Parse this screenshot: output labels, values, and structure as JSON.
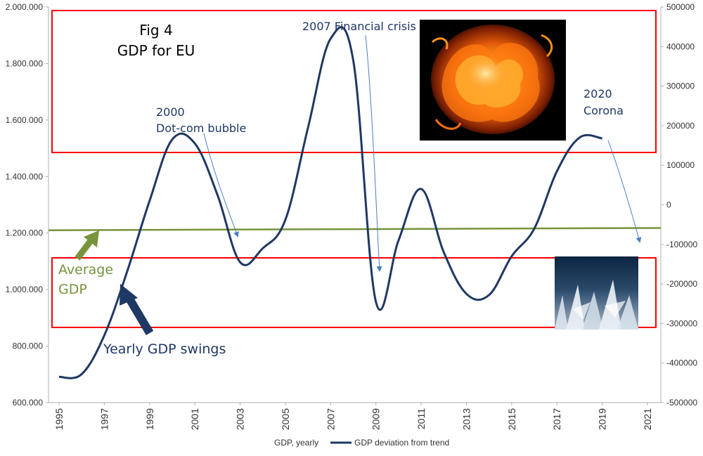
{
  "chart_data": {
    "type": "line",
    "title_line1": "Fig 4",
    "title_line2": "GDP for EU",
    "x_ticks": [
      "1995",
      "1997",
      "1999",
      "2001",
      "2003",
      "2005",
      "2007",
      "2009",
      "2011",
      "2013",
      "2015",
      "2017",
      "2019",
      "2021"
    ],
    "xlim": [
      1995,
      2021
    ],
    "y_left": {
      "ticks": [
        "600.000",
        "800.000",
        "1.000.000",
        "1.200.000",
        "1.400.000",
        "1.600.000",
        "1.800.000",
        "2.000.000"
      ],
      "ylim": [
        600000,
        2000000
      ]
    },
    "y_right": {
      "ticks": [
        "500000",
        "400000",
        "300000",
        "200000",
        "100000",
        "0",
        "-100000",
        "-200000",
        "-300000",
        "-400000",
        "-500000"
      ],
      "ylim": [
        -500000,
        500000
      ]
    },
    "series": [
      {
        "name": "GDP, yearly",
        "axis": "left",
        "color": "#77933c",
        "x": [
          1995,
          2021
        ],
        "values": [
          1210000,
          1218000
        ]
      },
      {
        "name": "GDP deviation from trend",
        "axis": "right",
        "color": "#1f3864",
        "x": [
          1995,
          1996,
          1997,
          1998,
          1999,
          2000,
          2001,
          2002,
          2003,
          2004,
          2005,
          2006,
          2007,
          2008,
          2009,
          2010,
          2011,
          2012,
          2013,
          2014,
          2015,
          2016,
          2017,
          2018,
          2019
        ],
        "values": [
          -435000,
          -428000,
          -330000,
          -170000,
          10000,
          165000,
          155000,
          25000,
          -145000,
          -110000,
          -38000,
          195000,
          420000,
          365000,
          -245000,
          -90000,
          40000,
          -120000,
          -225000,
          -228000,
          -130000,
          -60000,
          85000,
          170000,
          168000
        ]
      }
    ],
    "annotations": {
      "dotcom_year": "2000",
      "dotcom_label": "Dot-com bubble",
      "crisis_label": "2007 Financial crisis",
      "corona_year": "2020",
      "corona_label": "Corona",
      "average_line1": "Average",
      "average_line2": "GDP",
      "swings_label": "Yearly GDP swings"
    },
    "legend_placement": "bottom",
    "grid": false
  }
}
